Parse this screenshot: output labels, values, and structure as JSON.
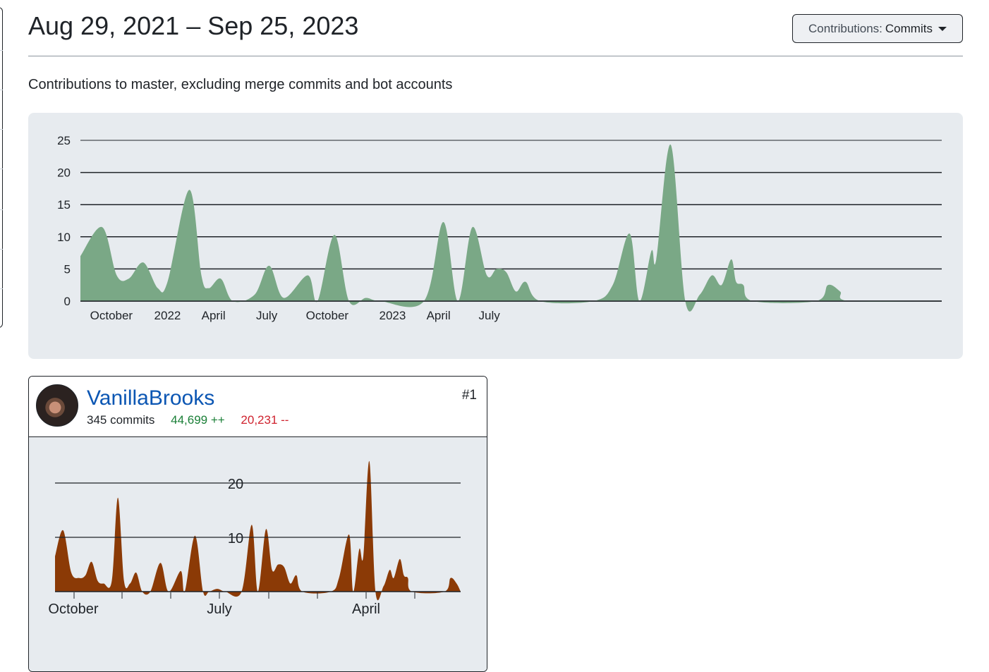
{
  "header": {
    "title": "Aug 29, 2021 – Sep 25, 2023",
    "subtitle": "Contributions to master, excluding merge commits and bot accounts",
    "contributions_dropdown": {
      "label": "Contributions:",
      "value": "Commits"
    }
  },
  "colors": {
    "main_area": "#7aa886",
    "user_area": "#8b3a06",
    "link": "#0b56b3",
    "additions": "#1a7f37",
    "deletions": "#cf222e"
  },
  "chart_data": [
    {
      "type": "area",
      "x_tick_labels": [
        "October",
        "2022",
        "April",
        "July",
        "October",
        "2023",
        "April",
        "July"
      ],
      "y_tick_labels": [
        "0",
        "5",
        "10",
        "15",
        "20",
        "25"
      ],
      "ylim": [
        0,
        25
      ],
      "grid": true,
      "series": [
        {
          "values": [
            [
              0,
              7
            ],
            [
              4.5,
              11.5
            ],
            [
              7.5,
              4
            ],
            [
              10,
              3.5
            ],
            [
              13,
              6
            ],
            [
              16,
              2
            ],
            [
              18,
              3
            ],
            [
              22.5,
              17.3
            ],
            [
              25,
              4
            ],
            [
              26.5,
              2
            ],
            [
              29,
              3.5
            ],
            [
              31.5,
              0
            ],
            [
              36,
              1
            ],
            [
              39,
              5.5
            ],
            [
              42,
              0.5
            ],
            [
              47,
              4
            ],
            [
              49,
              0
            ],
            [
              52.5,
              10.3
            ],
            [
              55.5,
              0
            ],
            [
              59,
              0.5
            ],
            [
              62,
              0
            ],
            [
              71,
              0
            ],
            [
              75,
              12.3
            ],
            [
              78,
              0
            ],
            [
              81,
              11.5
            ],
            [
              84,
              4
            ],
            [
              86,
              5
            ],
            [
              88,
              4.5
            ],
            [
              90,
              1.5
            ],
            [
              92,
              3
            ],
            [
              95,
              0
            ],
            [
              106,
              0
            ],
            [
              110,
              2.5
            ],
            [
              113.5,
              10.5
            ],
            [
              115.5,
              0
            ],
            [
              118,
              7.8
            ],
            [
              119,
              6.5
            ],
            [
              122,
              24.3
            ],
            [
              125,
              0
            ],
            [
              128,
              1
            ],
            [
              130.5,
              4
            ],
            [
              132.5,
              2.5
            ],
            [
              134.5,
              6.5
            ],
            [
              135.5,
              3
            ],
            [
              137,
              2.5
            ],
            [
              139,
              0
            ],
            [
              152,
              0
            ],
            [
              154.5,
              2.5
            ],
            [
              157,
              1.5
            ],
            [
              159,
              0
            ],
            [
              178,
              0
            ]
          ]
        }
      ]
    },
    {
      "type": "area",
      "x_tick_labels": [
        "October",
        "July",
        "April"
      ],
      "y_tick_labels": [
        "10",
        "20"
      ],
      "ylim": [
        0,
        20
      ],
      "grid": true,
      "series": [
        {
          "values": [
            [
              0,
              6.5
            ],
            [
              2,
              11.3
            ],
            [
              4,
              3.5
            ],
            [
              6,
              2.5
            ],
            [
              7.5,
              3
            ],
            [
              9,
              5.5
            ],
            [
              10.5,
              2
            ],
            [
              12,
              1.5
            ],
            [
              14,
              2
            ],
            [
              15.5,
              17.3
            ],
            [
              17,
              2
            ],
            [
              18.5,
              1.5
            ],
            [
              20,
              3.5
            ],
            [
              21.5,
              0
            ],
            [
              23.5,
              0
            ],
            [
              26,
              5.3
            ],
            [
              28,
              0
            ],
            [
              31,
              3.8
            ],
            [
              32,
              0
            ],
            [
              34.5,
              10.3
            ],
            [
              36.5,
              0
            ],
            [
              38,
              0
            ],
            [
              40,
              0.5
            ],
            [
              42,
              0
            ],
            [
              46,
              0
            ],
            [
              48.5,
              12.3
            ],
            [
              50,
              0
            ],
            [
              52,
              11.5
            ],
            [
              53.5,
              4
            ],
            [
              55,
              5
            ],
            [
              56.5,
              4.5
            ],
            [
              58,
              1.5
            ],
            [
              59.5,
              3
            ],
            [
              61,
              0
            ],
            [
              68,
              0
            ],
            [
              70,
              2.5
            ],
            [
              72.5,
              10.5
            ],
            [
              73.5,
              0
            ],
            [
              75,
              7.8
            ],
            [
              76,
              6.5
            ],
            [
              77.5,
              24
            ],
            [
              79,
              0
            ],
            [
              81,
              1
            ],
            [
              82.5,
              4
            ],
            [
              83.5,
              2.5
            ],
            [
              85,
              6
            ],
            [
              86,
              3
            ],
            [
              87,
              2.5
            ],
            [
              88,
              0
            ],
            [
              96,
              0
            ],
            [
              97.5,
              2.5
            ],
            [
              99,
              1.5
            ],
            [
              100,
              0
            ]
          ]
        }
      ]
    }
  ],
  "contributors": [
    {
      "rank": "#1",
      "name": "VanillaBrooks",
      "commits": "345 commits",
      "additions": "44,699 ++",
      "deletions": "20,231 --"
    }
  ]
}
